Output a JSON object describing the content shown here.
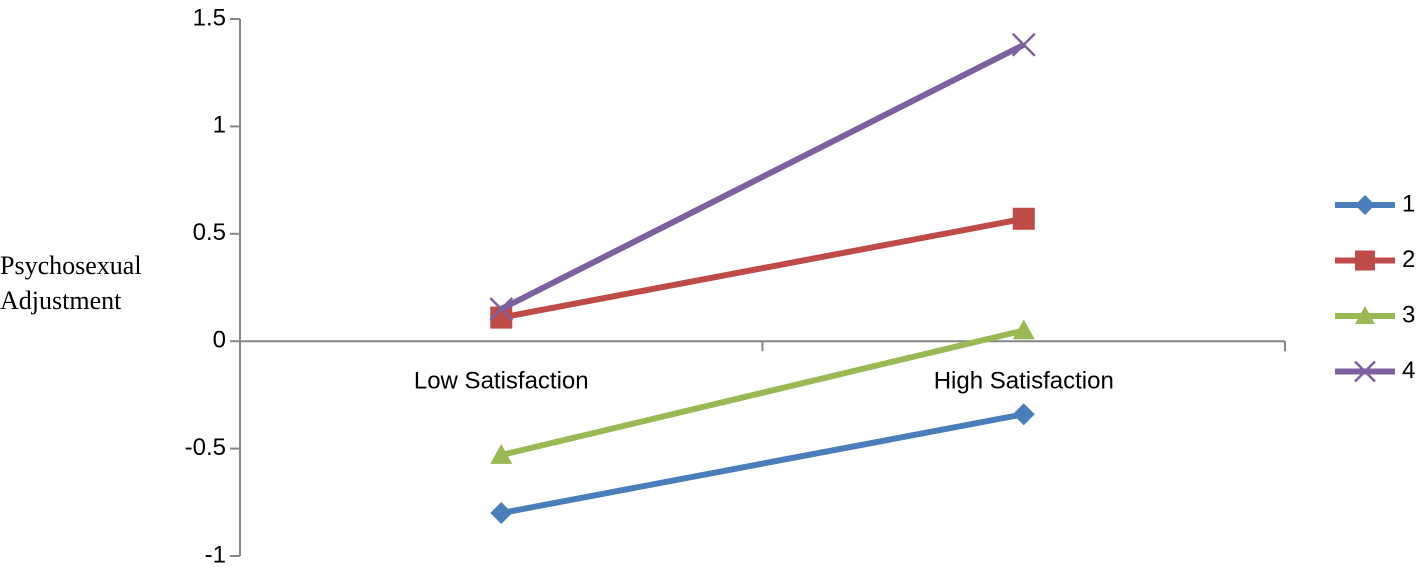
{
  "chart_data": {
    "type": "line",
    "ylabel": "Psychosexual Adjustment",
    "categories": [
      "Low Satisfaction",
      "High Satisfaction"
    ],
    "series": [
      {
        "name": "1",
        "color": "#4a7ebb",
        "marker": "diamond",
        "values": [
          -0.8,
          -0.34
        ]
      },
      {
        "name": "2",
        "color": "#be4b48",
        "marker": "square",
        "values": [
          0.11,
          0.57
        ]
      },
      {
        "name": "3",
        "color": "#98b954",
        "marker": "triangle",
        "values": [
          -0.53,
          0.05
        ]
      },
      {
        "name": "4",
        "color": "#7d60a0",
        "marker": "x",
        "values": [
          0.15,
          1.38
        ]
      }
    ],
    "ylim": [
      -1,
      1.5
    ],
    "yticks": [
      -1,
      -0.5,
      0,
      0.5,
      1,
      1.5
    ],
    "legend": "right"
  }
}
